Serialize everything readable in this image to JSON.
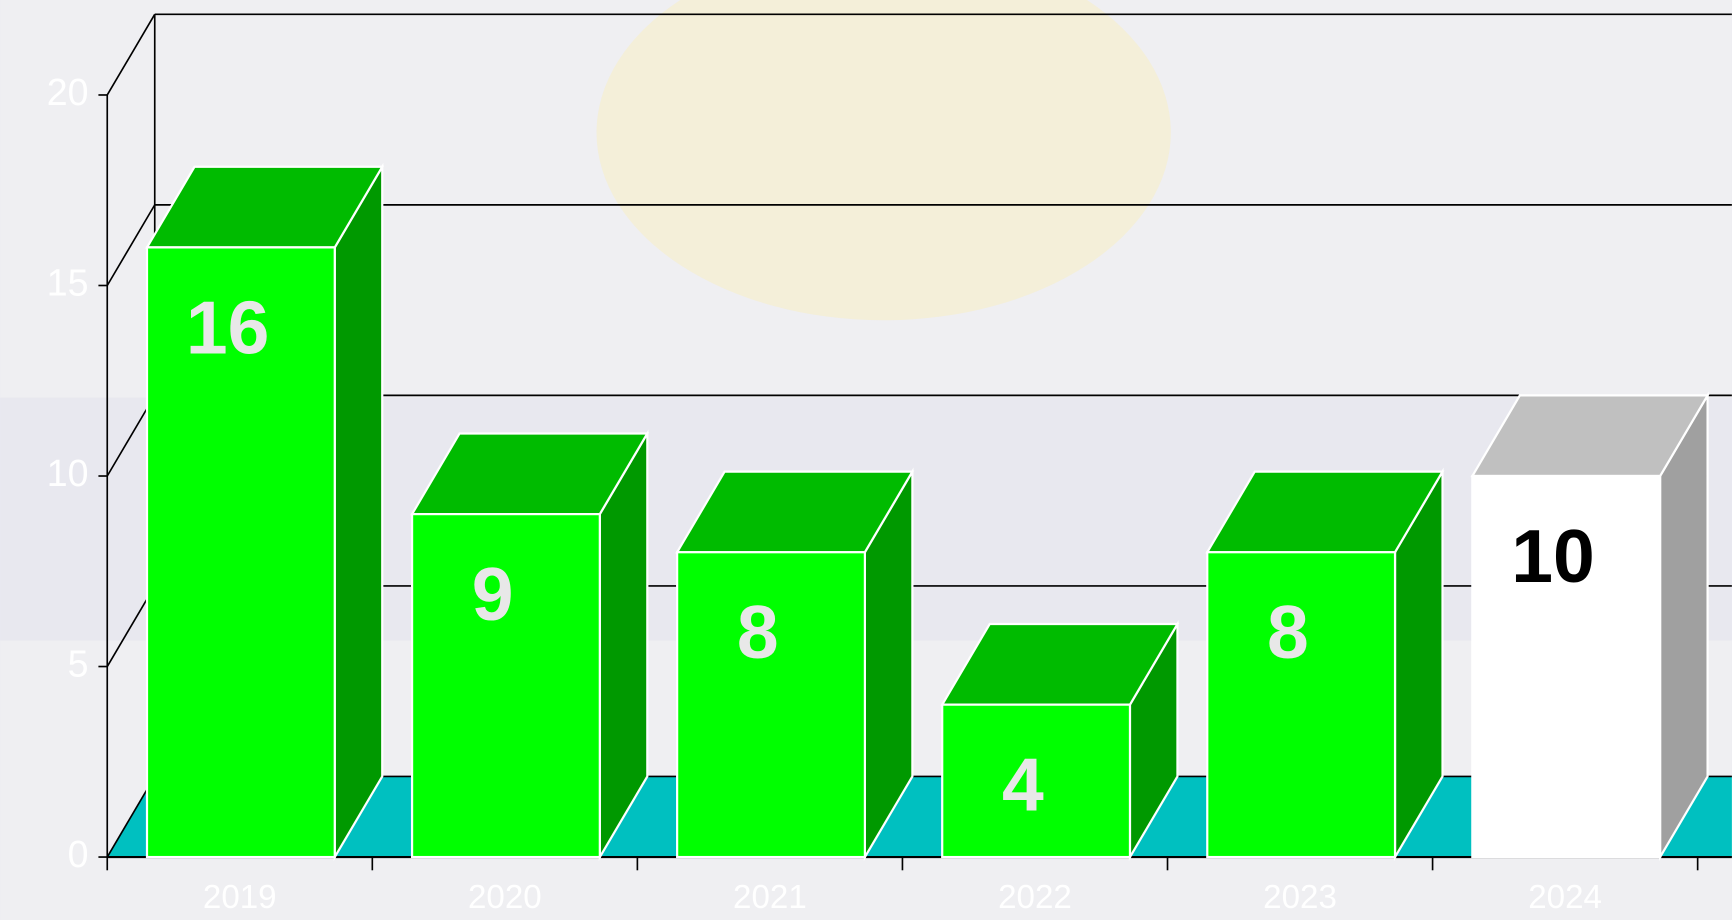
{
  "chart_data": {
    "type": "bar3d",
    "categories": [
      "2019",
      "2020",
      "2021",
      "2022",
      "2023",
      "2024"
    ],
    "values": [
      16,
      9,
      8,
      4,
      8,
      10
    ],
    "colors": [
      "#00ff00",
      "#00ff00",
      "#00ff00",
      "#00ff00",
      "#00ff00",
      "#ffffff"
    ],
    "top_colors": [
      "#00bb00",
      "#00bb00",
      "#00bb00",
      "#00bb00",
      "#00bb00",
      "#c0c0c0"
    ],
    "side_colors": [
      "#009900",
      "#009900",
      "#009900",
      "#009900",
      "#009900",
      "#a0a0a0"
    ],
    "label_colors": [
      "#e8e8e8",
      "#e8e8e8",
      "#e8e8e8",
      "#e8e8e8",
      "#e8e8e8",
      "#000000"
    ],
    "floor_color": "#00c0c0",
    "ylim": [
      0,
      20
    ],
    "yticks": [
      0,
      5,
      10,
      15,
      20
    ],
    "grid": true
  }
}
